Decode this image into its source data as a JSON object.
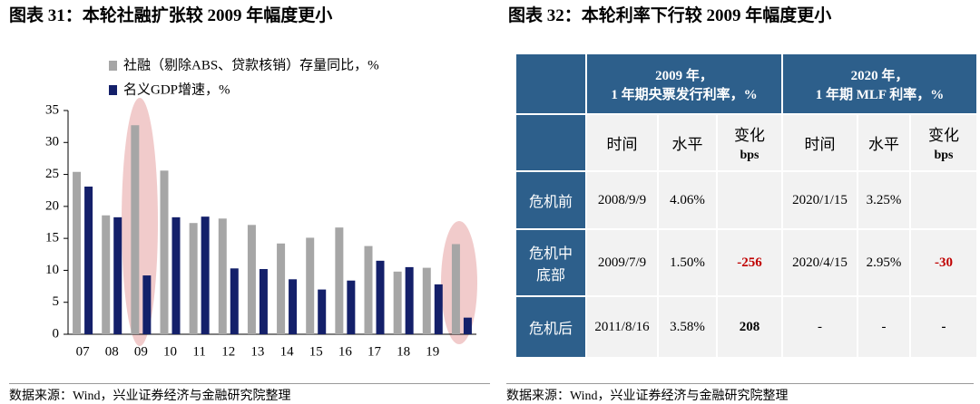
{
  "chart_data": {
    "type": "bar",
    "title": "图表 31：本轮社融扩张较 2009 年幅度更小",
    "categories": [
      "07",
      "08",
      "09",
      "10",
      "11",
      "12",
      "13",
      "14",
      "15",
      "16",
      "17",
      "18",
      "19",
      null
    ],
    "series": [
      {
        "name": "社融（剔除ABS、贷款核销）存量同比，%",
        "color": "#a6a6a6",
        "values": [
          25.4,
          18.6,
          32.7,
          25.6,
          17.4,
          18.1,
          17.1,
          14.2,
          15.1,
          16.7,
          13.8,
          9.8,
          10.4,
          14.1
        ]
      },
      {
        "name": "名义GDP增速，%",
        "color": "#14206a",
        "values": [
          23.1,
          18.3,
          9.2,
          18.3,
          18.4,
          10.3,
          10.2,
          8.6,
          7.0,
          8.4,
          11.5,
          10.5,
          7.8,
          2.6
        ]
      }
    ],
    "ylim": [
      0,
      35
    ],
    "yticks": [
      0,
      5,
      10,
      15,
      20,
      25,
      30,
      35
    ],
    "source": "数据来源：Wind，兴业证券经济与金融研究院整理"
  },
  "table_figure": {
    "title": "图表 32：本轮利率下行较 2009 年幅度更小",
    "group_headers": [
      [
        "2009 年，",
        "1 年期央票发行利率，%"
      ],
      [
        "2020 年，",
        "1 年期 MLF 利率，%"
      ]
    ],
    "sub_headers": [
      [
        "时间"
      ],
      [
        "水平"
      ],
      [
        "变化",
        "bps"
      ],
      [
        "时间"
      ],
      [
        "水平"
      ],
      [
        "变化",
        "bps"
      ]
    ],
    "rows": [
      {
        "label": [
          "危机前"
        ],
        "cells": [
          "2008/9/9",
          "4.06%",
          "",
          "2020/1/15",
          "3.25%",
          ""
        ]
      },
      {
        "label": [
          "危机中",
          "底部"
        ],
        "cells": [
          "2009/7/9",
          "1.50%",
          "-256",
          "2020/4/15",
          "2.95%",
          "-30"
        ]
      },
      {
        "label": [
          "危机后"
        ],
        "cells": [
          "2011/8/16",
          "3.58%",
          "208",
          "-",
          "-",
          "-"
        ]
      }
    ],
    "source": "数据来源：Wind，兴业证券经济与金融研究院整理"
  }
}
